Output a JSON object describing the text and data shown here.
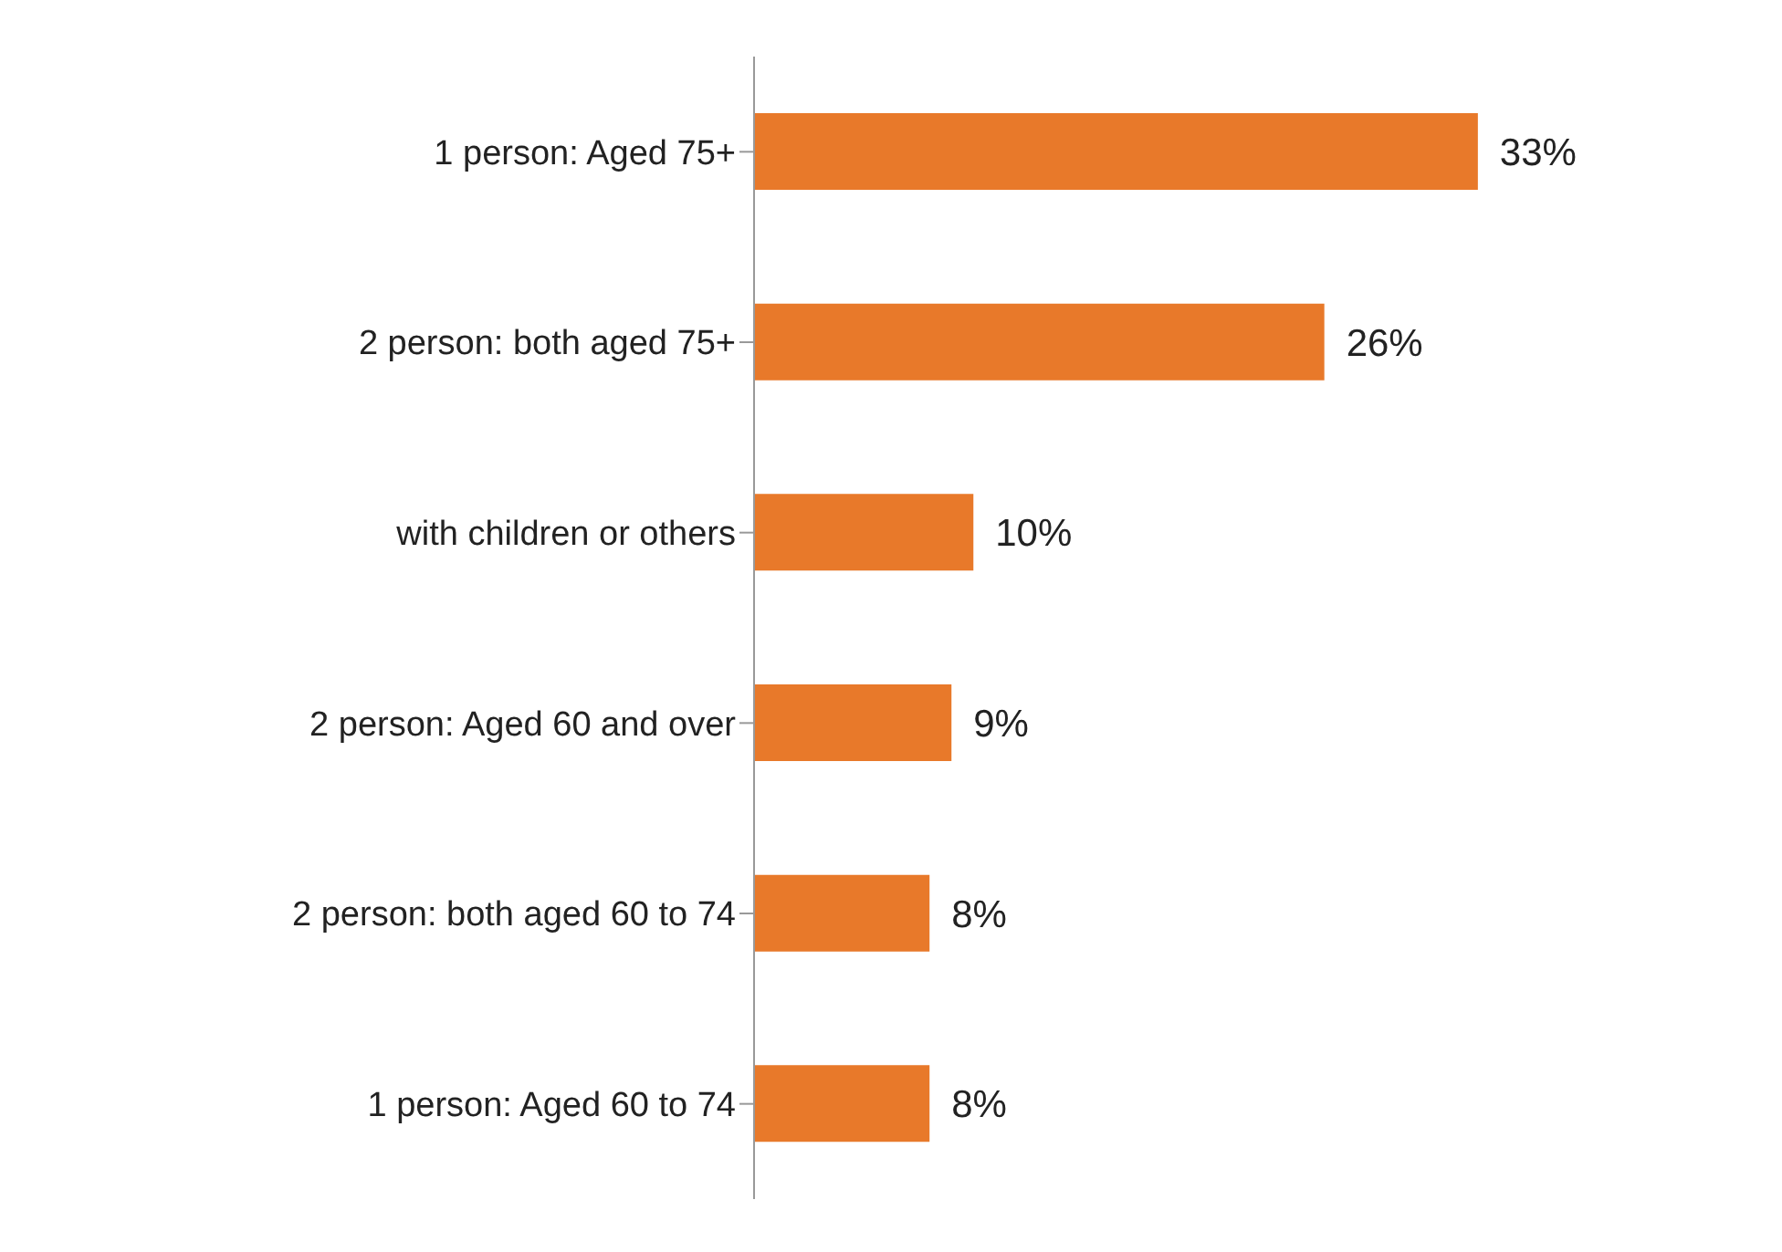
{
  "chart_data": {
    "type": "bar",
    "orientation": "horizontal",
    "categories": [
      "1 person: Aged 75+",
      "2 person: both aged 75+",
      "with children or others",
      "2 person: Aged 60 and over",
      "2 person: both aged 60 to 74",
      "1 person: Aged 60 to 74"
    ],
    "values": [
      33,
      26,
      10,
      9,
      8,
      8
    ],
    "value_labels": [
      "33%",
      "26%",
      "10%",
      "9%",
      "8%",
      "8%"
    ],
    "color": "#e8792a",
    "grid": false,
    "legend": false,
    "tick_labels": "y"
  }
}
